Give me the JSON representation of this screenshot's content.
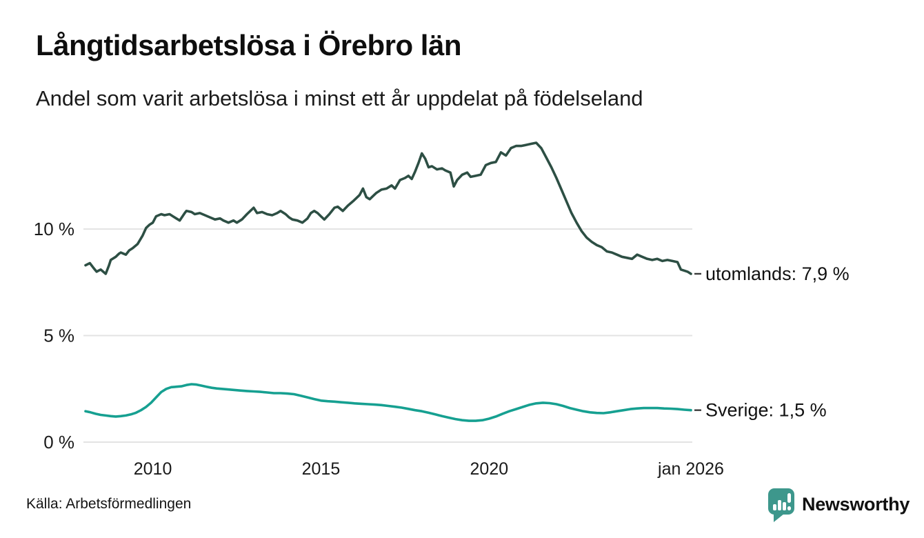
{
  "header": {
    "title": "Långtidsarbetslösa i Örebro län",
    "subtitle": "Andel som varit arbetslösa i minst ett år uppdelat på födelseland"
  },
  "footer": {
    "source": "Källa: Arbetsförmedlingen",
    "brand": "Newsworthy"
  },
  "colors": {
    "foreign_line": "#2d4f44",
    "sweden_line": "#16a091",
    "grid": "#e3e3e3",
    "tick_text": "#1a1a1a",
    "label_dash": "#3a3a3a",
    "brand": "#3d978c"
  },
  "chart_data": {
    "type": "line",
    "title": "Långtidsarbetslösa i Örebro län",
    "subtitle": "Andel som varit arbetslösa i minst ett år uppdelat på födelseland",
    "x_unit": "decimal_year",
    "y_unit": "percent",
    "x_domain": [
      2008,
      2026
    ],
    "ylim": [
      0,
      14.6
    ],
    "grid": true,
    "y_ticks": [
      {
        "value": 0,
        "label": "0 %"
      },
      {
        "value": 5,
        "label": "5 %"
      },
      {
        "value": 10,
        "label": "10 %"
      }
    ],
    "x_ticks": [
      {
        "value": 2010,
        "label": "2010"
      },
      {
        "value": 2015,
        "label": "2015"
      },
      {
        "value": 2020,
        "label": "2020"
      },
      {
        "value": 2026,
        "label": "jan 2026"
      }
    ],
    "series": [
      {
        "name": "utomlands",
        "end_label": "utomlands: 7,9 %",
        "end_value": "7,9 %",
        "color_key": "foreign_line",
        "points": [
          [
            2008.0,
            8.3
          ],
          [
            2008.13,
            8.4
          ],
          [
            2008.25,
            8.15
          ],
          [
            2008.33,
            8.0
          ],
          [
            2008.45,
            8.1
          ],
          [
            2008.6,
            7.9
          ],
          [
            2008.7,
            8.3
          ],
          [
            2008.75,
            8.55
          ],
          [
            2008.9,
            8.7
          ],
          [
            2009.0,
            8.85
          ],
          [
            2009.05,
            8.9
          ],
          [
            2009.2,
            8.8
          ],
          [
            2009.3,
            9.0
          ],
          [
            2009.4,
            9.1
          ],
          [
            2009.55,
            9.3
          ],
          [
            2009.7,
            9.7
          ],
          [
            2009.8,
            10.05
          ],
          [
            2009.9,
            10.2
          ],
          [
            2010.0,
            10.3
          ],
          [
            2010.1,
            10.6
          ],
          [
            2010.25,
            10.7
          ],
          [
            2010.35,
            10.65
          ],
          [
            2010.5,
            10.7
          ],
          [
            2010.6,
            10.6
          ],
          [
            2010.7,
            10.5
          ],
          [
            2010.8,
            10.4
          ],
          [
            2010.95,
            10.75
          ],
          [
            2011.0,
            10.85
          ],
          [
            2011.15,
            10.8
          ],
          [
            2011.25,
            10.7
          ],
          [
            2011.4,
            10.75
          ],
          [
            2011.55,
            10.65
          ],
          [
            2011.7,
            10.55
          ],
          [
            2011.85,
            10.45
          ],
          [
            2012.0,
            10.5
          ],
          [
            2012.1,
            10.4
          ],
          [
            2012.25,
            10.3
          ],
          [
            2012.4,
            10.4
          ],
          [
            2012.5,
            10.3
          ],
          [
            2012.65,
            10.45
          ],
          [
            2012.8,
            10.7
          ],
          [
            2012.9,
            10.85
          ],
          [
            2013.0,
            11.0
          ],
          [
            2013.1,
            10.75
          ],
          [
            2013.25,
            10.8
          ],
          [
            2013.4,
            10.7
          ],
          [
            2013.55,
            10.65
          ],
          [
            2013.7,
            10.75
          ],
          [
            2013.8,
            10.85
          ],
          [
            2013.95,
            10.7
          ],
          [
            2014.05,
            10.55
          ],
          [
            2014.15,
            10.45
          ],
          [
            2014.3,
            10.4
          ],
          [
            2014.45,
            10.3
          ],
          [
            2014.6,
            10.5
          ],
          [
            2014.7,
            10.75
          ],
          [
            2014.8,
            10.85
          ],
          [
            2014.9,
            10.75
          ],
          [
            2015.0,
            10.6
          ],
          [
            2015.1,
            10.45
          ],
          [
            2015.25,
            10.7
          ],
          [
            2015.4,
            11.0
          ],
          [
            2015.5,
            11.05
          ],
          [
            2015.65,
            10.85
          ],
          [
            2015.8,
            11.1
          ],
          [
            2015.95,
            11.3
          ],
          [
            2016.05,
            11.45
          ],
          [
            2016.15,
            11.6
          ],
          [
            2016.25,
            11.9
          ],
          [
            2016.35,
            11.5
          ],
          [
            2016.45,
            11.4
          ],
          [
            2016.55,
            11.55
          ],
          [
            2016.65,
            11.7
          ],
          [
            2016.8,
            11.85
          ],
          [
            2016.95,
            11.9
          ],
          [
            2017.1,
            12.05
          ],
          [
            2017.2,
            11.9
          ],
          [
            2017.35,
            12.3
          ],
          [
            2017.5,
            12.4
          ],
          [
            2017.6,
            12.5
          ],
          [
            2017.7,
            12.35
          ],
          [
            2017.8,
            12.7
          ],
          [
            2017.9,
            13.1
          ],
          [
            2018.0,
            13.55
          ],
          [
            2018.1,
            13.3
          ],
          [
            2018.2,
            12.9
          ],
          [
            2018.3,
            12.95
          ],
          [
            2018.45,
            12.8
          ],
          [
            2018.6,
            12.85
          ],
          [
            2018.7,
            12.75
          ],
          [
            2018.85,
            12.65
          ],
          [
            2018.95,
            12.0
          ],
          [
            2019.05,
            12.3
          ],
          [
            2019.2,
            12.55
          ],
          [
            2019.35,
            12.65
          ],
          [
            2019.45,
            12.45
          ],
          [
            2019.6,
            12.5
          ],
          [
            2019.75,
            12.55
          ],
          [
            2019.9,
            13.0
          ],
          [
            2020.05,
            13.1
          ],
          [
            2020.2,
            13.15
          ],
          [
            2020.35,
            13.6
          ],
          [
            2020.5,
            13.45
          ],
          [
            2020.65,
            13.8
          ],
          [
            2020.8,
            13.9
          ],
          [
            2020.95,
            13.9
          ],
          [
            2021.1,
            13.95
          ],
          [
            2021.25,
            14.0
          ],
          [
            2021.4,
            14.05
          ],
          [
            2021.55,
            13.8
          ],
          [
            2021.7,
            13.35
          ],
          [
            2021.85,
            12.9
          ],
          [
            2022.0,
            12.4
          ],
          [
            2022.15,
            11.85
          ],
          [
            2022.3,
            11.3
          ],
          [
            2022.45,
            10.75
          ],
          [
            2022.6,
            10.3
          ],
          [
            2022.75,
            9.9
          ],
          [
            2022.9,
            9.6
          ],
          [
            2023.05,
            9.4
          ],
          [
            2023.2,
            9.25
          ],
          [
            2023.35,
            9.15
          ],
          [
            2023.5,
            8.95
          ],
          [
            2023.65,
            8.9
          ],
          [
            2023.8,
            8.8
          ],
          [
            2023.95,
            8.7
          ],
          [
            2024.1,
            8.65
          ],
          [
            2024.25,
            8.6
          ],
          [
            2024.4,
            8.8
          ],
          [
            2024.55,
            8.7
          ],
          [
            2024.7,
            8.6
          ],
          [
            2024.85,
            8.55
          ],
          [
            2025.0,
            8.6
          ],
          [
            2025.15,
            8.5
          ],
          [
            2025.3,
            8.55
          ],
          [
            2025.45,
            8.5
          ],
          [
            2025.6,
            8.45
          ],
          [
            2025.7,
            8.1
          ],
          [
            2025.8,
            8.05
          ],
          [
            2025.9,
            8.0
          ],
          [
            2026.0,
            7.9
          ]
        ]
      },
      {
        "name": "sverige",
        "end_label": "Sverige: 1,5 %",
        "end_value": "1,5 %",
        "color_key": "sweden_line",
        "points": [
          [
            2008.0,
            1.45
          ],
          [
            2008.15,
            1.4
          ],
          [
            2008.3,
            1.33
          ],
          [
            2008.45,
            1.28
          ],
          [
            2008.6,
            1.25
          ],
          [
            2008.75,
            1.22
          ],
          [
            2008.9,
            1.2
          ],
          [
            2009.05,
            1.22
          ],
          [
            2009.2,
            1.25
          ],
          [
            2009.35,
            1.3
          ],
          [
            2009.5,
            1.38
          ],
          [
            2009.65,
            1.5
          ],
          [
            2009.8,
            1.65
          ],
          [
            2009.95,
            1.85
          ],
          [
            2010.1,
            2.1
          ],
          [
            2010.25,
            2.35
          ],
          [
            2010.4,
            2.5
          ],
          [
            2010.55,
            2.58
          ],
          [
            2010.7,
            2.6
          ],
          [
            2010.85,
            2.62
          ],
          [
            2011.0,
            2.68
          ],
          [
            2011.15,
            2.72
          ],
          [
            2011.3,
            2.7
          ],
          [
            2011.45,
            2.65
          ],
          [
            2011.6,
            2.6
          ],
          [
            2011.75,
            2.55
          ],
          [
            2011.9,
            2.52
          ],
          [
            2012.05,
            2.5
          ],
          [
            2012.2,
            2.48
          ],
          [
            2012.4,
            2.45
          ],
          [
            2012.6,
            2.42
          ],
          [
            2012.8,
            2.4
          ],
          [
            2013.0,
            2.38
          ],
          [
            2013.2,
            2.36
          ],
          [
            2013.4,
            2.33
          ],
          [
            2013.6,
            2.3
          ],
          [
            2013.8,
            2.3
          ],
          [
            2014.0,
            2.28
          ],
          [
            2014.2,
            2.25
          ],
          [
            2014.4,
            2.18
          ],
          [
            2014.6,
            2.1
          ],
          [
            2014.8,
            2.02
          ],
          [
            2015.0,
            1.95
          ],
          [
            2015.2,
            1.92
          ],
          [
            2015.4,
            1.9
          ],
          [
            2015.6,
            1.87
          ],
          [
            2015.8,
            1.85
          ],
          [
            2016.0,
            1.82
          ],
          [
            2016.2,
            1.8
          ],
          [
            2016.4,
            1.78
          ],
          [
            2016.6,
            1.76
          ],
          [
            2016.8,
            1.74
          ],
          [
            2017.0,
            1.7
          ],
          [
            2017.2,
            1.66
          ],
          [
            2017.4,
            1.62
          ],
          [
            2017.6,
            1.56
          ],
          [
            2017.8,
            1.5
          ],
          [
            2018.0,
            1.45
          ],
          [
            2018.2,
            1.38
          ],
          [
            2018.4,
            1.3
          ],
          [
            2018.6,
            1.22
          ],
          [
            2018.8,
            1.15
          ],
          [
            2019.0,
            1.08
          ],
          [
            2019.2,
            1.03
          ],
          [
            2019.4,
            1.0
          ],
          [
            2019.6,
            1.0
          ],
          [
            2019.8,
            1.03
          ],
          [
            2020.0,
            1.1
          ],
          [
            2020.2,
            1.2
          ],
          [
            2020.4,
            1.33
          ],
          [
            2020.6,
            1.45
          ],
          [
            2020.8,
            1.55
          ],
          [
            2021.0,
            1.65
          ],
          [
            2021.2,
            1.75
          ],
          [
            2021.4,
            1.82
          ],
          [
            2021.6,
            1.85
          ],
          [
            2021.8,
            1.83
          ],
          [
            2022.0,
            1.78
          ],
          [
            2022.2,
            1.7
          ],
          [
            2022.4,
            1.6
          ],
          [
            2022.6,
            1.52
          ],
          [
            2022.8,
            1.45
          ],
          [
            2023.0,
            1.4
          ],
          [
            2023.2,
            1.37
          ],
          [
            2023.4,
            1.36
          ],
          [
            2023.6,
            1.4
          ],
          [
            2023.8,
            1.45
          ],
          [
            2024.0,
            1.5
          ],
          [
            2024.2,
            1.55
          ],
          [
            2024.4,
            1.58
          ],
          [
            2024.6,
            1.6
          ],
          [
            2024.8,
            1.6
          ],
          [
            2025.0,
            1.6
          ],
          [
            2025.2,
            1.58
          ],
          [
            2025.4,
            1.57
          ],
          [
            2025.6,
            1.55
          ],
          [
            2025.8,
            1.52
          ],
          [
            2026.0,
            1.5
          ]
        ]
      }
    ]
  }
}
